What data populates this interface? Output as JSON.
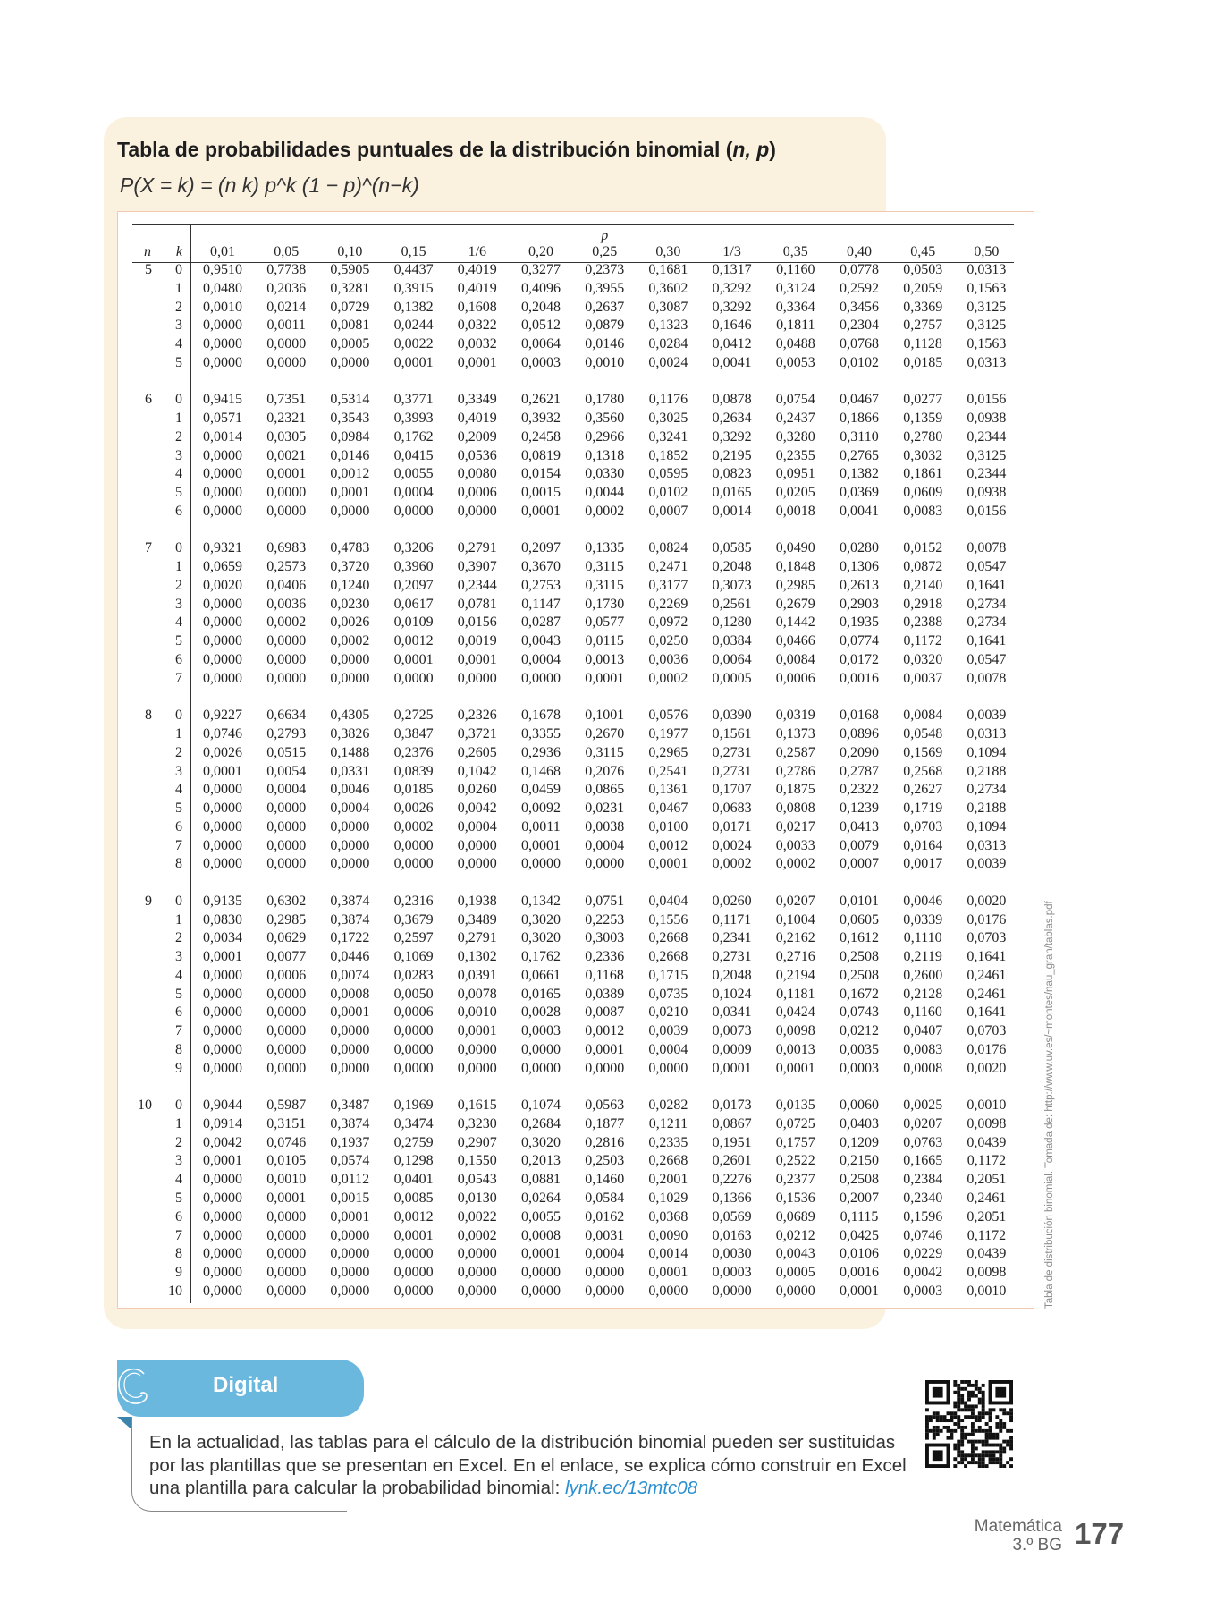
{
  "header": {
    "title": "Tabla de probabilidades puntuales de la distribución binomial (",
    "title_vars": "n, p",
    "title_end": ")",
    "formula": "P(X = k) = (n k) p^k (1 − p)^(n−k)"
  },
  "table": {
    "p_label": "p",
    "n_label": "n",
    "k_label": "k",
    "columns": [
      "0,01",
      "0,05",
      "0,10",
      "0,15",
      "1/6",
      "0,20",
      "0,25",
      "0,30",
      "1/3",
      "0,35",
      "0,40",
      "0,45",
      "0,50"
    ],
    "groups": [
      {
        "n": "5",
        "rows": [
          [
            "0",
            "0,9510",
            "0,7738",
            "0,5905",
            "0,4437",
            "0,4019",
            "0,3277",
            "0,2373",
            "0,1681",
            "0,1317",
            "0,1160",
            "0,0778",
            "0,0503",
            "0,0313"
          ],
          [
            "1",
            "0,0480",
            "0,2036",
            "0,3281",
            "0,3915",
            "0,4019",
            "0,4096",
            "0,3955",
            "0,3602",
            "0,3292",
            "0,3124",
            "0,2592",
            "0,2059",
            "0,1563"
          ],
          [
            "2",
            "0,0010",
            "0,0214",
            "0,0729",
            "0,1382",
            "0,1608",
            "0,2048",
            "0,2637",
            "0,3087",
            "0,3292",
            "0,3364",
            "0,3456",
            "0,3369",
            "0,3125"
          ],
          [
            "3",
            "0,0000",
            "0,0011",
            "0,0081",
            "0,0244",
            "0,0322",
            "0,0512",
            "0,0879",
            "0,1323",
            "0,1646",
            "0,1811",
            "0,2304",
            "0,2757",
            "0,3125"
          ],
          [
            "4",
            "0,0000",
            "0,0000",
            "0,0005",
            "0,0022",
            "0,0032",
            "0,0064",
            "0,0146",
            "0,0284",
            "0,0412",
            "0,0488",
            "0,0768",
            "0,1128",
            "0,1563"
          ],
          [
            "5",
            "0,0000",
            "0,0000",
            "0,0000",
            "0,0001",
            "0,0001",
            "0,0003",
            "0,0010",
            "0,0024",
            "0,0041",
            "0,0053",
            "0,0102",
            "0,0185",
            "0,0313"
          ]
        ]
      },
      {
        "n": "6",
        "rows": [
          [
            "0",
            "0,9415",
            "0,7351",
            "0,5314",
            "0,3771",
            "0,3349",
            "0,2621",
            "0,1780",
            "0,1176",
            "0,0878",
            "0,0754",
            "0,0467",
            "0,0277",
            "0,0156"
          ],
          [
            "1",
            "0,0571",
            "0,2321",
            "0,3543",
            "0,3993",
            "0,4019",
            "0,3932",
            "0,3560",
            "0,3025",
            "0,2634",
            "0,2437",
            "0,1866",
            "0,1359",
            "0,0938"
          ],
          [
            "2",
            "0,0014",
            "0,0305",
            "0,0984",
            "0,1762",
            "0,2009",
            "0,2458",
            "0,2966",
            "0,3241",
            "0,3292",
            "0,3280",
            "0,3110",
            "0,2780",
            "0,2344"
          ],
          [
            "3",
            "0,0000",
            "0,0021",
            "0,0146",
            "0,0415",
            "0,0536",
            "0,0819",
            "0,1318",
            "0,1852",
            "0,2195",
            "0,2355",
            "0,2765",
            "0,3032",
            "0,3125"
          ],
          [
            "4",
            "0,0000",
            "0,0001",
            "0,0012",
            "0,0055",
            "0,0080",
            "0,0154",
            "0,0330",
            "0,0595",
            "0,0823",
            "0,0951",
            "0,1382",
            "0,1861",
            "0,2344"
          ],
          [
            "5",
            "0,0000",
            "0,0000",
            "0,0001",
            "0,0004",
            "0,0006",
            "0,0015",
            "0,0044",
            "0,0102",
            "0,0165",
            "0,0205",
            "0,0369",
            "0,0609",
            "0,0938"
          ],
          [
            "6",
            "0,0000",
            "0,0000",
            "0,0000",
            "0,0000",
            "0,0000",
            "0,0001",
            "0,0002",
            "0,0007",
            "0,0014",
            "0,0018",
            "0,0041",
            "0,0083",
            "0,0156"
          ]
        ]
      },
      {
        "n": "7",
        "rows": [
          [
            "0",
            "0,9321",
            "0,6983",
            "0,4783",
            "0,3206",
            "0,2791",
            "0,2097",
            "0,1335",
            "0,0824",
            "0,0585",
            "0,0490",
            "0,0280",
            "0,0152",
            "0,0078"
          ],
          [
            "1",
            "0,0659",
            "0,2573",
            "0,3720",
            "0,3960",
            "0,3907",
            "0,3670",
            "0,3115",
            "0,2471",
            "0,2048",
            "0,1848",
            "0,1306",
            "0,0872",
            "0,0547"
          ],
          [
            "2",
            "0,0020",
            "0,0406",
            "0,1240",
            "0,2097",
            "0,2344",
            "0,2753",
            "0,3115",
            "0,3177",
            "0,3073",
            "0,2985",
            "0,2613",
            "0,2140",
            "0,1641"
          ],
          [
            "3",
            "0,0000",
            "0,0036",
            "0,0230",
            "0,0617",
            "0,0781",
            "0,1147",
            "0,1730",
            "0,2269",
            "0,2561",
            "0,2679",
            "0,2903",
            "0,2918",
            "0,2734"
          ],
          [
            "4",
            "0,0000",
            "0,0002",
            "0,0026",
            "0,0109",
            "0,0156",
            "0,0287",
            "0,0577",
            "0,0972",
            "0,1280",
            "0,1442",
            "0,1935",
            "0,2388",
            "0,2734"
          ],
          [
            "5",
            "0,0000",
            "0,0000",
            "0,0002",
            "0,0012",
            "0,0019",
            "0,0043",
            "0,0115",
            "0,0250",
            "0,0384",
            "0,0466",
            "0,0774",
            "0,1172",
            "0,1641"
          ],
          [
            "6",
            "0,0000",
            "0,0000",
            "0,0000",
            "0,0001",
            "0,0001",
            "0,0004",
            "0,0013",
            "0,0036",
            "0,0064",
            "0,0084",
            "0,0172",
            "0,0320",
            "0,0547"
          ],
          [
            "7",
            "0,0000",
            "0,0000",
            "0,0000",
            "0,0000",
            "0,0000",
            "0,0000",
            "0,0001",
            "0,0002",
            "0,0005",
            "0,0006",
            "0,0016",
            "0,0037",
            "0,0078"
          ]
        ]
      },
      {
        "n": "8",
        "rows": [
          [
            "0",
            "0,9227",
            "0,6634",
            "0,4305",
            "0,2725",
            "0,2326",
            "0,1678",
            "0,1001",
            "0,0576",
            "0,0390",
            "0,0319",
            "0,0168",
            "0,0084",
            "0,0039"
          ],
          [
            "1",
            "0,0746",
            "0,2793",
            "0,3826",
            "0,3847",
            "0,3721",
            "0,3355",
            "0,2670",
            "0,1977",
            "0,1561",
            "0,1373",
            "0,0896",
            "0,0548",
            "0,0313"
          ],
          [
            "2",
            "0,0026",
            "0,0515",
            "0,1488",
            "0,2376",
            "0,2605",
            "0,2936",
            "0,3115",
            "0,2965",
            "0,2731",
            "0,2587",
            "0,2090",
            "0,1569",
            "0,1094"
          ],
          [
            "3",
            "0,0001",
            "0,0054",
            "0,0331",
            "0,0839",
            "0,1042",
            "0,1468",
            "0,2076",
            "0,2541",
            "0,2731",
            "0,2786",
            "0,2787",
            "0,2568",
            "0,2188"
          ],
          [
            "4",
            "0,0000",
            "0,0004",
            "0,0046",
            "0,0185",
            "0,0260",
            "0,0459",
            "0,0865",
            "0,1361",
            "0,1707",
            "0,1875",
            "0,2322",
            "0,2627",
            "0,2734"
          ],
          [
            "5",
            "0,0000",
            "0,0000",
            "0,0004",
            "0,0026",
            "0,0042",
            "0,0092",
            "0,0231",
            "0,0467",
            "0,0683",
            "0,0808",
            "0,1239",
            "0,1719",
            "0,2188"
          ],
          [
            "6",
            "0,0000",
            "0,0000",
            "0,0000",
            "0,0002",
            "0,0004",
            "0,0011",
            "0,0038",
            "0,0100",
            "0,0171",
            "0,0217",
            "0,0413",
            "0,0703",
            "0,1094"
          ],
          [
            "7",
            "0,0000",
            "0,0000",
            "0,0000",
            "0,0000",
            "0,0000",
            "0,0001",
            "0,0004",
            "0,0012",
            "0,0024",
            "0,0033",
            "0,0079",
            "0,0164",
            "0,0313"
          ],
          [
            "8",
            "0,0000",
            "0,0000",
            "0,0000",
            "0,0000",
            "0,0000",
            "0,0000",
            "0,0000",
            "0,0001",
            "0,0002",
            "0,0002",
            "0,0007",
            "0,0017",
            "0,0039"
          ]
        ]
      },
      {
        "n": "9",
        "rows": [
          [
            "0",
            "0,9135",
            "0,6302",
            "0,3874",
            "0,2316",
            "0,1938",
            "0,1342",
            "0,0751",
            "0,0404",
            "0,0260",
            "0,0207",
            "0,0101",
            "0,0046",
            "0,0020"
          ],
          [
            "1",
            "0,0830",
            "0,2985",
            "0,3874",
            "0,3679",
            "0,3489",
            "0,3020",
            "0,2253",
            "0,1556",
            "0,1171",
            "0,1004",
            "0,0605",
            "0,0339",
            "0,0176"
          ],
          [
            "2",
            "0,0034",
            "0,0629",
            "0,1722",
            "0,2597",
            "0,2791",
            "0,3020",
            "0,3003",
            "0,2668",
            "0,2341",
            "0,2162",
            "0,1612",
            "0,1110",
            "0,0703"
          ],
          [
            "3",
            "0,0001",
            "0,0077",
            "0,0446",
            "0,1069",
            "0,1302",
            "0,1762",
            "0,2336",
            "0,2668",
            "0,2731",
            "0,2716",
            "0,2508",
            "0,2119",
            "0,1641"
          ],
          [
            "4",
            "0,0000",
            "0,0006",
            "0,0074",
            "0,0283",
            "0,0391",
            "0,0661",
            "0,1168",
            "0,1715",
            "0,2048",
            "0,2194",
            "0,2508",
            "0,2600",
            "0,2461"
          ],
          [
            "5",
            "0,0000",
            "0,0000",
            "0,0008",
            "0,0050",
            "0,0078",
            "0,0165",
            "0,0389",
            "0,0735",
            "0,1024",
            "0,1181",
            "0,1672",
            "0,2128",
            "0,2461"
          ],
          [
            "6",
            "0,0000",
            "0,0000",
            "0,0001",
            "0,0006",
            "0,0010",
            "0,0028",
            "0,0087",
            "0,0210",
            "0,0341",
            "0,0424",
            "0,0743",
            "0,1160",
            "0,1641"
          ],
          [
            "7",
            "0,0000",
            "0,0000",
            "0,0000",
            "0,0000",
            "0,0001",
            "0,0003",
            "0,0012",
            "0,0039",
            "0,0073",
            "0,0098",
            "0,0212",
            "0,0407",
            "0,0703"
          ],
          [
            "8",
            "0,0000",
            "0,0000",
            "0,0000",
            "0,0000",
            "0,0000",
            "0,0000",
            "0,0001",
            "0,0004",
            "0,0009",
            "0,0013",
            "0,0035",
            "0,0083",
            "0,0176"
          ],
          [
            "9",
            "0,0000",
            "0,0000",
            "0,0000",
            "0,0000",
            "0,0000",
            "0,0000",
            "0,0000",
            "0,0000",
            "0,0001",
            "0,0001",
            "0,0003",
            "0,0008",
            "0,0020"
          ]
        ]
      },
      {
        "n": "10",
        "rows": [
          [
            "0",
            "0,9044",
            "0,5987",
            "0,3487",
            "0,1969",
            "0,1615",
            "0,1074",
            "0,0563",
            "0,0282",
            "0,0173",
            "0,0135",
            "0,0060",
            "0,0025",
            "0,0010"
          ],
          [
            "1",
            "0,0914",
            "0,3151",
            "0,3874",
            "0,3474",
            "0,3230",
            "0,2684",
            "0,1877",
            "0,1211",
            "0,0867",
            "0,0725",
            "0,0403",
            "0,0207",
            "0,0098"
          ],
          [
            "2",
            "0,0042",
            "0,0746",
            "0,1937",
            "0,2759",
            "0,2907",
            "0,3020",
            "0,2816",
            "0,2335",
            "0,1951",
            "0,1757",
            "0,1209",
            "0,0763",
            "0,0439"
          ],
          [
            "3",
            "0,0001",
            "0,0105",
            "0,0574",
            "0,1298",
            "0,1550",
            "0,2013",
            "0,2503",
            "0,2668",
            "0,2601",
            "0,2522",
            "0,2150",
            "0,1665",
            "0,1172"
          ],
          [
            "4",
            "0,0000",
            "0,0010",
            "0,0112",
            "0,0401",
            "0,0543",
            "0,0881",
            "0,1460",
            "0,2001",
            "0,2276",
            "0,2377",
            "0,2508",
            "0,2384",
            "0,2051"
          ],
          [
            "5",
            "0,0000",
            "0,0001",
            "0,0015",
            "0,0085",
            "0,0130",
            "0,0264",
            "0,0584",
            "0,1029",
            "0,1366",
            "0,1536",
            "0,2007",
            "0,2340",
            "0,2461"
          ],
          [
            "6",
            "0,0000",
            "0,0000",
            "0,0001",
            "0,0012",
            "0,0022",
            "0,0055",
            "0,0162",
            "0,0368",
            "0,0569",
            "0,0689",
            "0,1115",
            "0,1596",
            "0,2051"
          ],
          [
            "7",
            "0,0000",
            "0,0000",
            "0,0000",
            "0,0001",
            "0,0002",
            "0,0008",
            "0,0031",
            "0,0090",
            "0,0163",
            "0,0212",
            "0,0425",
            "0,0746",
            "0,1172"
          ],
          [
            "8",
            "0,0000",
            "0,0000",
            "0,0000",
            "0,0000",
            "0,0000",
            "0,0001",
            "0,0004",
            "0,0014",
            "0,0030",
            "0,0043",
            "0,0106",
            "0,0229",
            "0,0439"
          ],
          [
            "9",
            "0,0000",
            "0,0000",
            "0,0000",
            "0,0000",
            "0,0000",
            "0,0000",
            "0,0000",
            "0,0001",
            "0,0003",
            "0,0005",
            "0,0016",
            "0,0042",
            "0,0098"
          ],
          [
            "10",
            "0,0000",
            "0,0000",
            "0,0000",
            "0,0000",
            "0,0000",
            "0,0000",
            "0,0000",
            "0,0000",
            "0,0000",
            "0,0000",
            "0,0001",
            "0,0003",
            "0,0010"
          ]
        ]
      }
    ]
  },
  "side_note": "Tabla de distribución binomial. Tomada de: http://www.uv.es/~montes/nau_gran/tablas.pdf",
  "digital": {
    "label": "Digital",
    "text": "En la actualidad, las tablas para el cálculo de la distribución binomial pueden ser sustituidas por las plantillas que se presentan en Excel. En el enlace, se explica cómo construir en Excel una plantilla para calcular la probabilidad binomial: ",
    "link": "lynk.ec/13mtc08",
    "icon": "c-swirl-icon",
    "color": "#6bb8df"
  },
  "qr_icon": "qr-code-icon",
  "footer": {
    "subject": "Matemática",
    "grade": "3.º BG",
    "page": "177"
  }
}
